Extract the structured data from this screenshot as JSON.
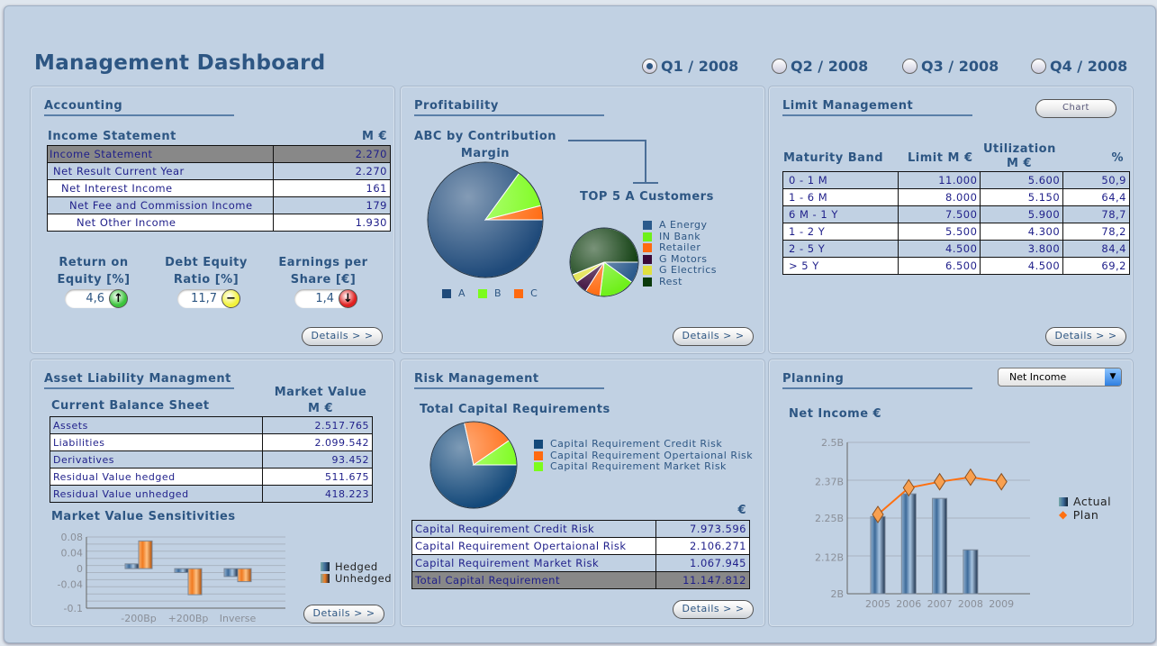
{
  "title": "Management Dashboard",
  "periods": [
    {
      "label": "Q1 / 2008",
      "selected": true
    },
    {
      "label": "Q2 / 2008",
      "selected": false
    },
    {
      "label": "Q3 / 2008",
      "selected": false
    },
    {
      "label": "Q4 / 2008",
      "selected": false
    }
  ],
  "details_label": "Details > >",
  "accounting": {
    "title": "Accounting",
    "table_title": "Income Statement",
    "unit": "M €",
    "rows": [
      {
        "label": "Income Statement",
        "value": "2.270"
      },
      {
        "label": "Net Result Current Year",
        "value": "2.270"
      },
      {
        "label": "Net Interest Income",
        "value": "161"
      },
      {
        "label": "Net Fee and Commission Income",
        "value": "179"
      },
      {
        "label": "Net Other Income",
        "value": "1.930"
      }
    ],
    "kpis": [
      {
        "label1": "Return on",
        "label2": "Equity [%]",
        "value": "4,6",
        "trend": "up",
        "color": "#3cc43c"
      },
      {
        "label1": "Debt Equity",
        "label2": "Ratio [%]",
        "value": "11,7",
        "trend": "neutral",
        "color": "#f2f23a"
      },
      {
        "label1": "Earnings per",
        "label2": "Share [€]",
        "value": "1,4",
        "trend": "down",
        "color": "#e02020"
      }
    ]
  },
  "profitability": {
    "title": "Profitability",
    "abc_title1": "ABC by Contribution",
    "abc_title2": "Margin",
    "top5_title": "TOP 5 A Customers"
  },
  "limit": {
    "title": "Limit Management",
    "chart_button": "Chart",
    "headers": [
      "Maturity Band",
      "Limit M €",
      "Utilization",
      "M €",
      "%"
    ],
    "rows": [
      [
        "0 - 1 M",
        "11.000",
        "5.600",
        "50,9"
      ],
      [
        "1 - 6 M",
        "8.000",
        "5.150",
        "64,4"
      ],
      [
        "6 M - 1 Y",
        "7.500",
        "5.900",
        "78,7"
      ],
      [
        "1 - 2 Y",
        "5.500",
        "4.300",
        "78,2"
      ],
      [
        "2 - 5 Y",
        "4.500",
        "3.800",
        "84,4"
      ],
      [
        "> 5 Y",
        "6.500",
        "4.500",
        "69,2"
      ]
    ]
  },
  "alm": {
    "title": "Asset Liability Managment",
    "table_title": "Current Balance Sheet",
    "col1": "Market Value",
    "col2": "M €",
    "rows": [
      {
        "label": "Assets",
        "value": "2.517.765"
      },
      {
        "label": "Liabilities",
        "value": "2.099.542"
      },
      {
        "label": "Derivatives",
        "value": "93.452"
      },
      {
        "label": "Residual Value hedged",
        "value": "511.675"
      },
      {
        "label": "Residual Value unhedged",
        "value": "418.223"
      }
    ],
    "sens_title": "Market Value Sensitivities"
  },
  "risk": {
    "title": "Risk Management",
    "chart_title": "Total Capital Requirements",
    "unit": "€",
    "rows": [
      {
        "label": "Capital Requirement Credit Risk",
        "value": "7.973.596"
      },
      {
        "label": "Capital Requirement Opertaional Risk",
        "value": "2.106.271"
      },
      {
        "label": "Capital Requirement Market Risk",
        "value": "1.067.945"
      },
      {
        "label": "Total Capital Requirement",
        "value": "11.147.812"
      }
    ]
  },
  "planning": {
    "title": "Planning",
    "dropdown": "Net Income",
    "chart_title": "Net Income  €"
  },
  "chart_data": [
    {
      "id": "abc",
      "type": "pie",
      "labels": [
        "A",
        "B",
        "C"
      ],
      "values": [
        85,
        11,
        4
      ],
      "colors": [
        "#1f4a7a",
        "#7cfc1c",
        "#ff6a10"
      ],
      "legend": "bottom"
    },
    {
      "id": "top5",
      "type": "pie",
      "labels": [
        "A Energy",
        "IN Bank",
        "Retailer",
        "G Motors",
        "G Electrics",
        "Rest"
      ],
      "values": [
        10,
        17,
        7,
        6,
        4,
        56
      ],
      "colors": [
        "#2b5a8c",
        "#6ff01a",
        "#ff6a10",
        "#3a0a3a",
        "#e0e040",
        "#0b3a0b"
      ],
      "legend": "right"
    },
    {
      "id": "capital",
      "type": "pie",
      "labels": [
        "Capital Requirement Credit Risk",
        "Capital Requirement Opertaional Risk",
        "Capital Requirement Market Risk"
      ],
      "values": [
        7973596,
        2106271,
        1067945
      ],
      "colors": [
        "#14497a",
        "#ff6a10",
        "#7cfc1c"
      ],
      "legend": "right"
    },
    {
      "id": "sens",
      "type": "bar",
      "categories": [
        "-200Bp",
        "+200Bp",
        "Inverse"
      ],
      "series": [
        {
          "name": "Hedged",
          "values": [
            0.012,
            -0.01,
            -0.02
          ],
          "color": "#3d6a99"
        },
        {
          "name": "Unhedged",
          "values": [
            0.07,
            -0.066,
            -0.033
          ],
          "color": "#f07a20"
        }
      ],
      "ylim": [
        -0.1,
        0.08
      ],
      "yticks": [
        "0.08",
        "0.04",
        "0",
        "-0.04",
        "-0.1"
      ],
      "grid": true,
      "legend": "right"
    },
    {
      "id": "planning",
      "type": "bar+line",
      "categories": [
        "2005",
        "2006",
        "2007",
        "2008",
        "2009"
      ],
      "series": [
        {
          "name": "Actual",
          "type": "bar",
          "values": [
            2.255,
            2.33,
            2.315,
            2.145,
            null
          ],
          "color": "#3d6a99"
        },
        {
          "name": "Plan",
          "type": "line",
          "values": [
            2.262,
            2.35,
            2.37,
            2.385,
            2.37
          ],
          "color": "#ff7010"
        }
      ],
      "ylim": [
        2.0,
        2.5
      ],
      "yticks": [
        "2.5B",
        "2.37B",
        "2.25B",
        "2.12B",
        "2B"
      ],
      "grid": true,
      "legend": "right"
    }
  ]
}
